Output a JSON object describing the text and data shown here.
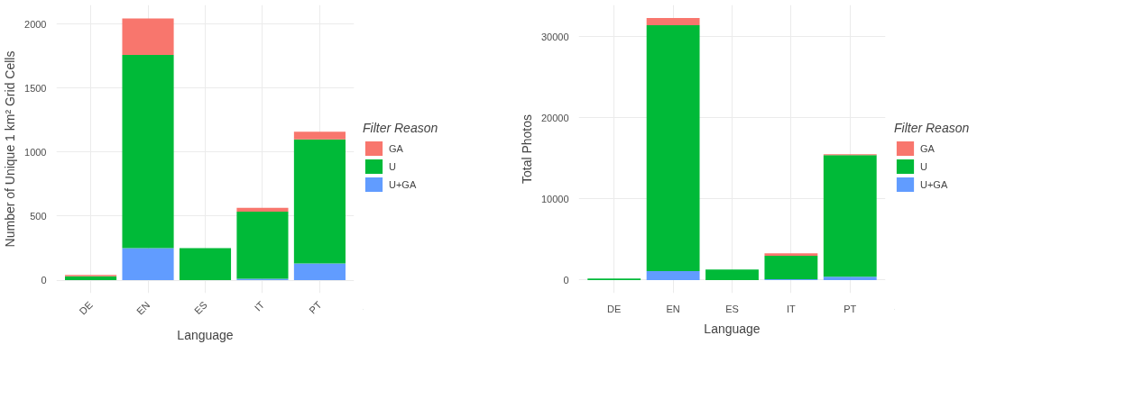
{
  "chart_data": [
    {
      "type": "bar",
      "stacked": true,
      "categories": [
        "DE",
        "EN",
        "ES",
        "IT",
        "PT"
      ],
      "xlabel": "Language",
      "ylabel": "Number of Unique 1 km² Grid Cells",
      "legend_title": "Filter Reason",
      "legend": "right",
      "grid": true,
      "ylim": [
        -102,
        2150
      ],
      "yticks": [
        0,
        500,
        1000,
        1500,
        2000
      ],
      "series": [
        {
          "name": "U+GA",
          "color": "#619cff",
          "values": [
            0,
            250,
            0,
            10,
            130
          ]
        },
        {
          "name": "U",
          "color": "#00ba38",
          "values": [
            30,
            1510,
            250,
            525,
            970
          ]
        },
        {
          "name": "GA",
          "color": "#f8766d",
          "values": [
            10,
            285,
            0,
            30,
            60
          ]
        }
      ]
    },
    {
      "type": "bar",
      "stacked": true,
      "categories": [
        "DE",
        "EN",
        "ES",
        "IT",
        "PT"
      ],
      "xlabel": "Language",
      "ylabel": "Total Photos",
      "legend_title": "Filter Reason",
      "legend": "right",
      "grid": true,
      "ylim": [
        -1615,
        33900
      ],
      "yticks": [
        0,
        10000,
        20000,
        30000
      ],
      "series": [
        {
          "name": "U+GA",
          "color": "#619cff",
          "values": [
            0,
            1100,
            0,
            100,
            400
          ]
        },
        {
          "name": "U",
          "color": "#00ba38",
          "values": [
            200,
            30300,
            1300,
            2900,
            15000
          ]
        },
        {
          "name": "GA",
          "color": "#f8766d",
          "values": [
            0,
            900,
            0,
            300,
            100
          ]
        }
      ]
    }
  ]
}
